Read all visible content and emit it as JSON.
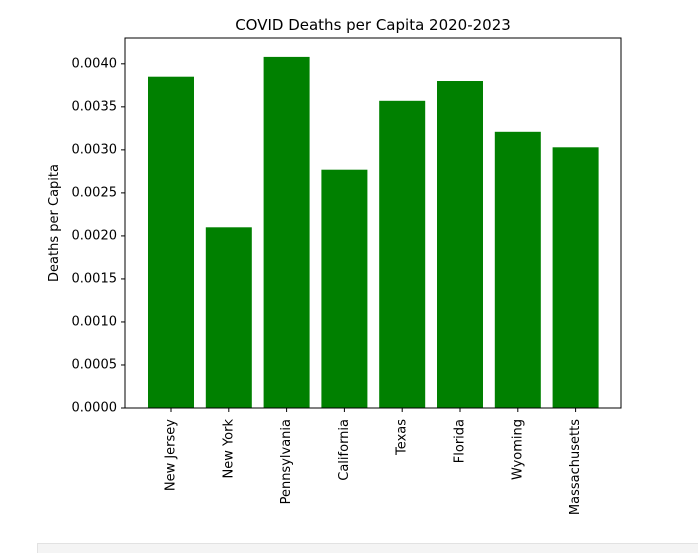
{
  "chart_data": {
    "type": "bar",
    "title": "COVID Deaths per Capita 2020-2023",
    "xlabel": "",
    "ylabel": "Deaths per Capita",
    "categories": [
      "New Jersey",
      "New York",
      "Pennsylvania",
      "California",
      "Texas",
      "Florida",
      "Wyoming",
      "Massachusetts"
    ],
    "values": [
      0.00385,
      0.0021,
      0.00408,
      0.00277,
      0.00357,
      0.0038,
      0.00321,
      0.00303
    ],
    "ylim": [
      0,
      0.0043
    ],
    "yticks": [
      0,
      0.0005,
      0.001,
      0.0015,
      0.002,
      0.0025,
      0.003,
      0.0035,
      0.004
    ],
    "ytick_labels": [
      "0.0000",
      "0.0005",
      "0.0010",
      "0.0015",
      "0.0020",
      "0.0025",
      "0.0030",
      "0.0035",
      "0.0040"
    ],
    "bar_color": "#008000",
    "grid": false,
    "legend": "none"
  }
}
